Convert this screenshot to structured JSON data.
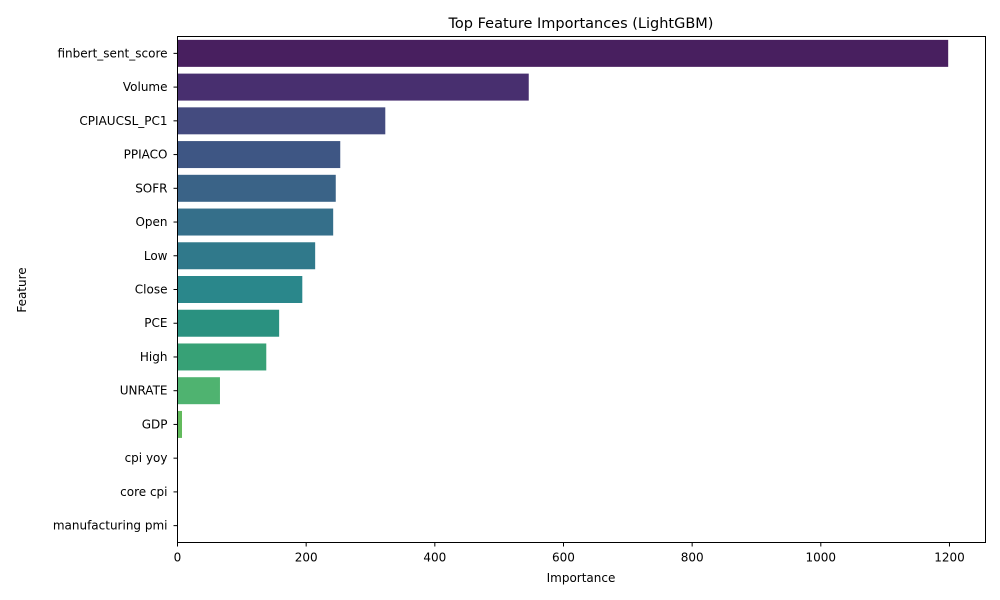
{
  "chart_data": {
    "type": "bar",
    "orientation": "horizontal",
    "title": "Top Feature Importances (LightGBM)",
    "xlabel": "Importance",
    "ylabel": "Feature",
    "xlim": [
      0,
      1256
    ],
    "xticks": [
      0,
      200,
      400,
      600,
      800,
      1000,
      1200
    ],
    "grid": false,
    "categories": [
      "finbert_sent_score",
      "Volume",
      "CPIAUCSL_PC1",
      "PPIACO",
      "SOFR",
      "Open",
      "Low",
      "Close",
      "PCE",
      "High",
      "UNRATE",
      "GDP",
      "cpi yoy",
      "core cpi",
      "manufacturing pmi"
    ],
    "values": [
      1198,
      546,
      323,
      253,
      246,
      242,
      214,
      194,
      158,
      138,
      66,
      7,
      0,
      0,
      0
    ],
    "colors": [
      "#481f5f",
      "#482f6f",
      "#444b7f",
      "#3e5684",
      "#3a6387",
      "#356f8a",
      "#30798b",
      "#2a878b",
      "#2a9180",
      "#37a176",
      "#4fb370",
      "#62ba5c",
      "#7cc652",
      "#98d045",
      "#bddb32"
    ]
  }
}
